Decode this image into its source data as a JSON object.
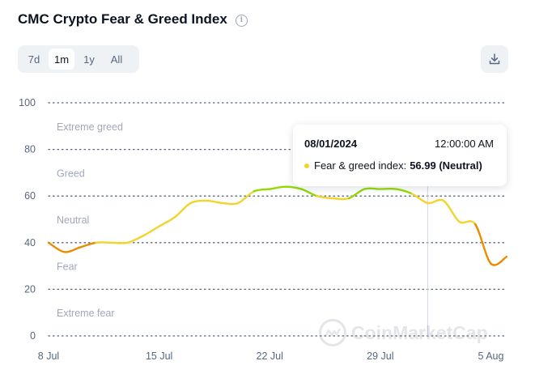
{
  "header": {
    "title": "CMC Crypto Fear & Greed Index",
    "info_icon": "info-icon"
  },
  "range_tabs": [
    {
      "label": "7d",
      "active": false
    },
    {
      "label": "1m",
      "active": true
    },
    {
      "label": "1y",
      "active": false
    },
    {
      "label": "All",
      "active": false
    }
  ],
  "download_icon": "download-icon",
  "tooltip": {
    "date": "08/01/2024",
    "time": "12:00:00 AM",
    "label": "Fear & greed index:",
    "value": "56.99 (Neutral)",
    "dot_color": "#f3d42f"
  },
  "watermark": {
    "text": "CoinMarketCap",
    "icon": "coinmarketcap-logo-icon"
  },
  "colors": {
    "fear": "#ea8c00",
    "neutral": "#f3d42f",
    "greed": "#93d900",
    "grid": "#58667e",
    "zone_label": "#a1a7bb",
    "tick_label": "#58667e"
  },
  "chart_data": {
    "type": "line",
    "title": "CMC Crypto Fear & Greed Index",
    "xlabel": "",
    "ylabel": "",
    "ylim": [
      0,
      100
    ],
    "yticks": [
      0,
      20,
      40,
      60,
      80,
      100
    ],
    "xlim": [
      "2024-07-08",
      "2024-08-06"
    ],
    "xticks": [
      {
        "date": "2024-07-08",
        "label": "8 Jul"
      },
      {
        "date": "2024-07-15",
        "label": "15 Jul"
      },
      {
        "date": "2024-07-22",
        "label": "22 Jul"
      },
      {
        "date": "2024-07-29",
        "label": "29 Jul"
      },
      {
        "date": "2024-08-05",
        "label": "5 Aug"
      }
    ],
    "zones": [
      {
        "label": "Extreme greed",
        "from": 80,
        "to": 100
      },
      {
        "label": "Greed",
        "from": 60,
        "to": 80
      },
      {
        "label": "Neutral",
        "from": 40,
        "to": 60
      },
      {
        "label": "Fear",
        "from": 20,
        "to": 40
      },
      {
        "label": "Extreme fear",
        "from": 0,
        "to": 20
      }
    ],
    "grid": true,
    "crosshair_date": "2024-08-01",
    "series": [
      {
        "points": [
          {
            "date": "2024-07-08",
            "value": 40
          },
          {
            "date": "2024-07-09",
            "value": 36
          },
          {
            "date": "2024-07-10",
            "value": 38
          },
          {
            "date": "2024-07-11",
            "value": 40
          },
          {
            "date": "2024-07-12",
            "value": 40
          },
          {
            "date": "2024-07-13",
            "value": 40
          },
          {
            "date": "2024-07-14",
            "value": 43
          },
          {
            "date": "2024-07-15",
            "value": 47
          },
          {
            "date": "2024-07-16",
            "value": 51
          },
          {
            "date": "2024-07-17",
            "value": 57
          },
          {
            "date": "2024-07-18",
            "value": 58
          },
          {
            "date": "2024-07-19",
            "value": 57
          },
          {
            "date": "2024-07-20",
            "value": 57
          },
          {
            "date": "2024-07-21",
            "value": 62
          },
          {
            "date": "2024-07-22",
            "value": 63
          },
          {
            "date": "2024-07-23",
            "value": 64
          },
          {
            "date": "2024-07-24",
            "value": 63
          },
          {
            "date": "2024-07-25",
            "value": 60
          },
          {
            "date": "2024-07-26",
            "value": 59
          },
          {
            "date": "2024-07-27",
            "value": 59
          },
          {
            "date": "2024-07-28",
            "value": 63
          },
          {
            "date": "2024-07-29",
            "value": 63
          },
          {
            "date": "2024-07-30",
            "value": 63
          },
          {
            "date": "2024-07-31",
            "value": 61
          },
          {
            "date": "2024-08-01",
            "value": 56.99
          },
          {
            "date": "2024-08-02",
            "value": 58
          },
          {
            "date": "2024-08-03",
            "value": 49
          },
          {
            "date": "2024-08-04",
            "value": 48
          },
          {
            "date": "2024-08-05",
            "value": 31
          },
          {
            "date": "2024-08-06",
            "value": 34
          }
        ]
      }
    ]
  }
}
